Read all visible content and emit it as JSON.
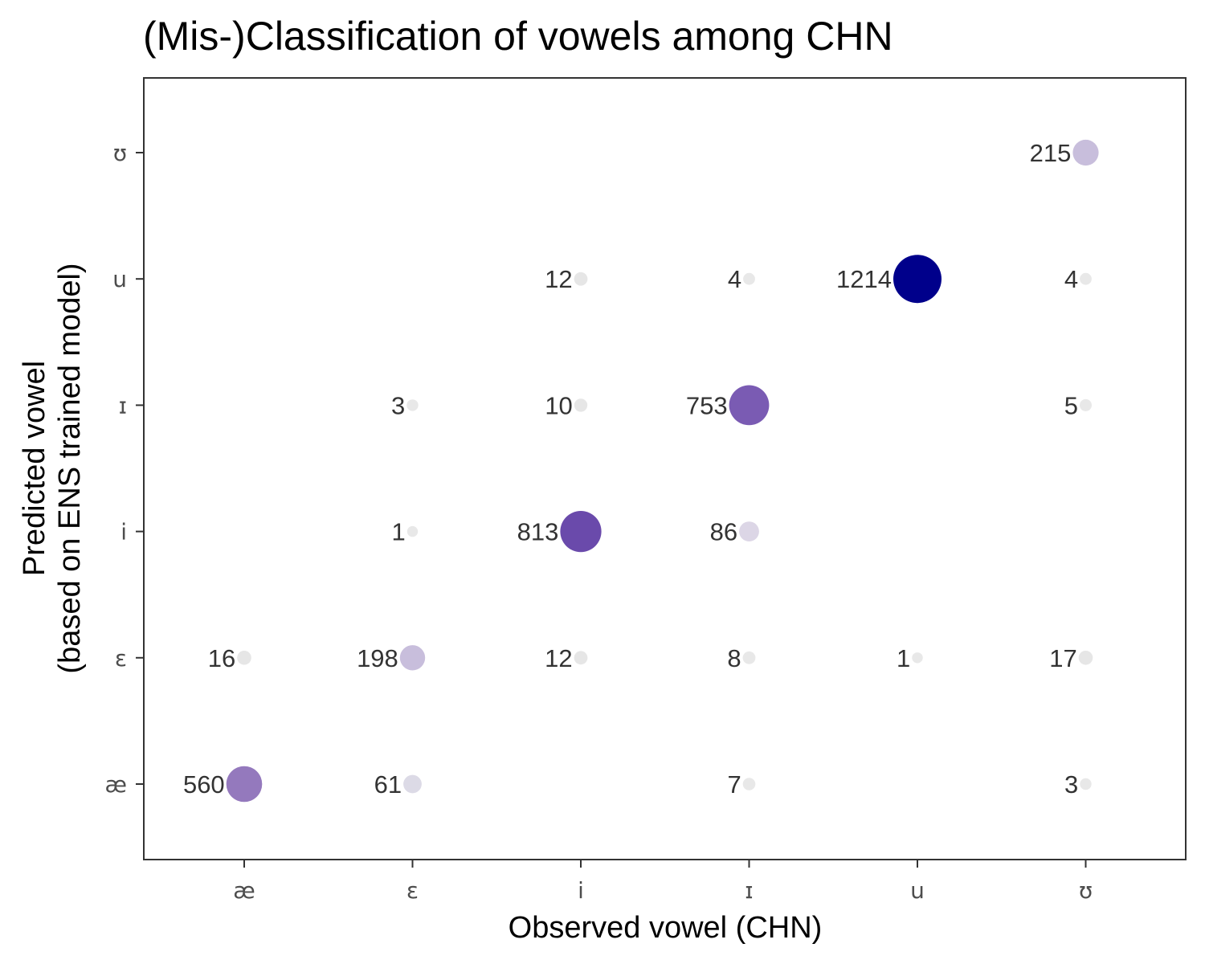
{
  "chart_data": {
    "type": "scatter",
    "title": "(Mis-)Classification of vowels among CHN",
    "xlabel": "Observed vowel (CHN)",
    "ylabel": [
      "Predicted vowel",
      "(based on ENS trained model)"
    ],
    "x_categories": [
      "æ",
      "ɛ",
      "i",
      "ɪ",
      "u",
      "ʊ"
    ],
    "y_categories": [
      "æ",
      "ɛ",
      "i",
      "ɪ",
      "u",
      "ʊ"
    ],
    "grid": false,
    "points": [
      {
        "observed": "æ",
        "predicted": "æ",
        "count": 560,
        "color": "#9479bd"
      },
      {
        "observed": "æ",
        "predicted": "ɛ",
        "count": 16,
        "color": "#e6e6e6"
      },
      {
        "observed": "ɛ",
        "predicted": "æ",
        "count": 61,
        "color": "#dcdae6"
      },
      {
        "observed": "ɛ",
        "predicted": "ɛ",
        "count": 198,
        "color": "#c8bedc"
      },
      {
        "observed": "ɛ",
        "predicted": "i",
        "count": 1,
        "color": "#e8e8e8"
      },
      {
        "observed": "ɛ",
        "predicted": "ɪ",
        "count": 3,
        "color": "#e8e8e8"
      },
      {
        "observed": "i",
        "predicted": "ɛ",
        "count": 12,
        "color": "#e6e6e6"
      },
      {
        "observed": "i",
        "predicted": "i",
        "count": 813,
        "color": "#6a4aab"
      },
      {
        "observed": "i",
        "predicted": "ɪ",
        "count": 10,
        "color": "#e6e6e6"
      },
      {
        "observed": "i",
        "predicted": "u",
        "count": 12,
        "color": "#e6e6e6"
      },
      {
        "observed": "ɪ",
        "predicted": "æ",
        "count": 7,
        "color": "#e8e8e8"
      },
      {
        "observed": "ɪ",
        "predicted": "ɛ",
        "count": 8,
        "color": "#e8e8e8"
      },
      {
        "observed": "ɪ",
        "predicted": "i",
        "count": 86,
        "color": "#dcd6e6"
      },
      {
        "observed": "ɪ",
        "predicted": "ɪ",
        "count": 753,
        "color": "#7a5bb3"
      },
      {
        "observed": "ɪ",
        "predicted": "u",
        "count": 4,
        "color": "#e8e8e8"
      },
      {
        "observed": "u",
        "predicted": "ɛ",
        "count": 1,
        "color": "#e8e8e8"
      },
      {
        "observed": "u",
        "predicted": "u",
        "count": 1214,
        "color": "#00008b"
      },
      {
        "observed": "ʊ",
        "predicted": "æ",
        "count": 3,
        "color": "#e8e8e8"
      },
      {
        "observed": "ʊ",
        "predicted": "ɛ",
        "count": 17,
        "color": "#e6e6e6"
      },
      {
        "observed": "ʊ",
        "predicted": "ɪ",
        "count": 5,
        "color": "#e8e8e8"
      },
      {
        "observed": "ʊ",
        "predicted": "u",
        "count": 4,
        "color": "#e8e8e8"
      },
      {
        "observed": "ʊ",
        "predicted": "ʊ",
        "count": 215,
        "color": "#c8bedc"
      }
    ]
  }
}
